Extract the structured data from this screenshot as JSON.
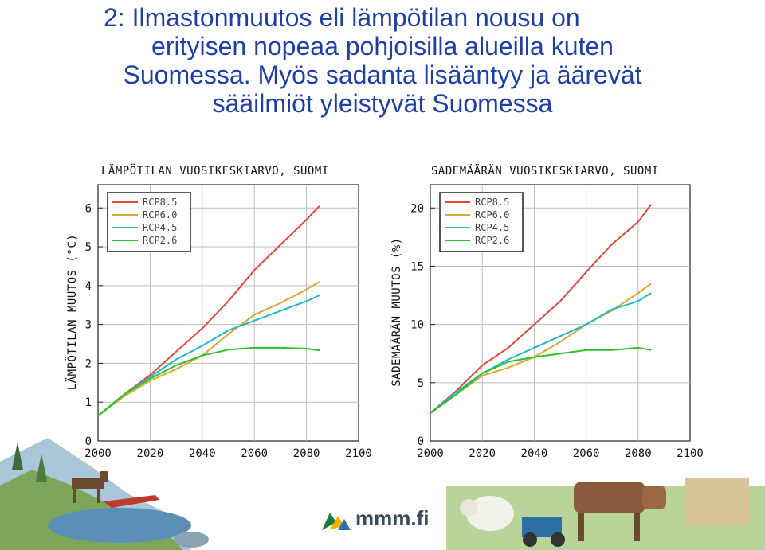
{
  "slide": {
    "title_line1": "2: Ilmastonmuutos eli lämpötilan nousu on",
    "title_line2": "erityisen nopeaa pohjoisilla alueilla kuten",
    "title_line3": "Suomessa. Myös sadanta lisääntyy ja äärevät",
    "title_line4": "sääilmiöt yleistyvät Suomessa"
  },
  "logo": {
    "text": "mmm.fi"
  },
  "colors": {
    "title": "#1f3fa8",
    "RCP8.5": "#e8453c",
    "RCP6.0": "#d9a834",
    "RCP4.5": "#22b8c4",
    "RCP2.6": "#2dbf2d"
  },
  "chart_data": [
    {
      "type": "line",
      "title": "LÄMPÖTILAN VUOSIKESKIARVO, SUOMI",
      "xlabel": "",
      "ylabel": "LÄMPÖTILAN MUUTOS (°C)",
      "xlim": [
        2000,
        2100
      ],
      "ylim": [
        0,
        6.6
      ],
      "xticks": [
        2000,
        2020,
        2040,
        2060,
        2080,
        2100
      ],
      "yticks": [
        0,
        1,
        2,
        3,
        4,
        5,
        6
      ],
      "grid": true,
      "legend": "top-left",
      "x": [
        2000,
        2010,
        2020,
        2030,
        2040,
        2050,
        2060,
        2070,
        2080,
        2085
      ],
      "series": [
        {
          "name": "RCP8.5",
          "values": [
            0.65,
            1.2,
            1.7,
            2.3,
            2.9,
            3.6,
            4.4,
            5.05,
            5.7,
            6.05
          ]
        },
        {
          "name": "RCP6.0",
          "values": [
            0.65,
            1.15,
            1.55,
            1.85,
            2.2,
            2.75,
            3.25,
            3.55,
            3.9,
            4.1
          ]
        },
        {
          "name": "RCP4.5",
          "values": [
            0.65,
            1.2,
            1.65,
            2.1,
            2.45,
            2.85,
            3.1,
            3.35,
            3.6,
            3.75
          ]
        },
        {
          "name": "RCP2.6",
          "values": [
            0.65,
            1.2,
            1.6,
            1.95,
            2.2,
            2.35,
            2.4,
            2.4,
            2.38,
            2.33
          ]
        }
      ]
    },
    {
      "type": "line",
      "title": "SADEMÄÄRÄN VUOSIKESKIARVO, SUOMI",
      "xlabel": "",
      "ylabel": "SADEMÄÄRÄN MUUTOS (%)",
      "xlim": [
        2000,
        2100
      ],
      "ylim": [
        0,
        22
      ],
      "xticks": [
        2000,
        2020,
        2040,
        2060,
        2080,
        2100
      ],
      "yticks": [
        0,
        5,
        10,
        15,
        20
      ],
      "grid": true,
      "legend": "top-left",
      "x": [
        2000,
        2010,
        2020,
        2030,
        2040,
        2050,
        2060,
        2070,
        2080,
        2085
      ],
      "series": [
        {
          "name": "RCP8.5",
          "values": [
            2.4,
            4.3,
            6.5,
            8.0,
            10.0,
            12.0,
            14.5,
            16.9,
            18.8,
            20.3
          ]
        },
        {
          "name": "RCP6.0",
          "values": [
            2.4,
            4.0,
            5.6,
            6.3,
            7.2,
            8.5,
            10.0,
            11.2,
            12.7,
            13.5
          ]
        },
        {
          "name": "RCP4.5",
          "values": [
            2.4,
            4.2,
            5.8,
            7.0,
            8.0,
            9.0,
            10.0,
            11.3,
            12.0,
            12.7
          ]
        },
        {
          "name": "RCP2.6",
          "values": [
            2.4,
            4.0,
            5.8,
            6.8,
            7.2,
            7.5,
            7.8,
            7.8,
            8.0,
            7.8
          ]
        }
      ]
    }
  ]
}
